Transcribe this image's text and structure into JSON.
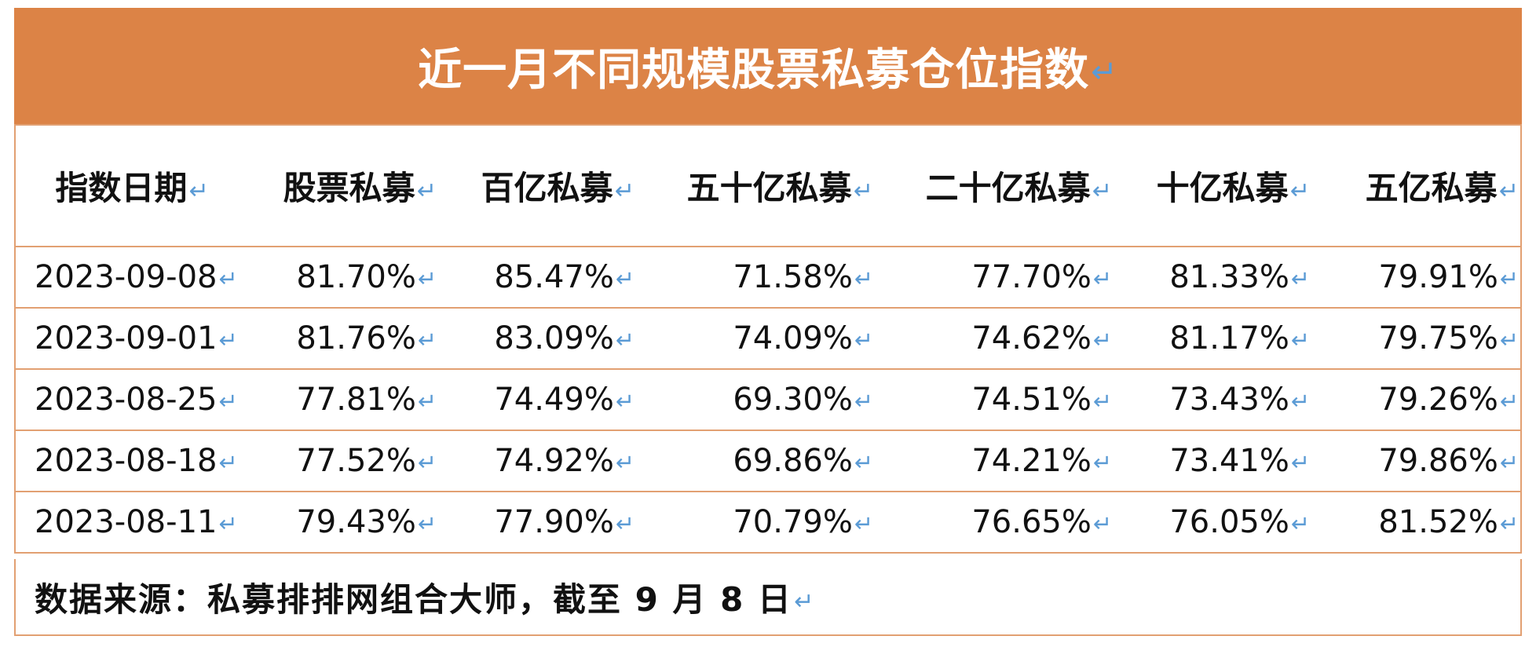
{
  "title": "近一月不同规模股票私募仓位指数",
  "paragraph_mark": "↵",
  "columns": [
    "指数日期",
    "股票私募",
    "百亿私募",
    "五十亿私募",
    "二十亿私募",
    "十亿私募",
    "五亿私募"
  ],
  "rows": [
    [
      "2023-09-08",
      "81.70%",
      "85.47%",
      "71.58%",
      "77.70%",
      "81.33%",
      "79.91%"
    ],
    [
      "2023-09-01",
      "81.76%",
      "83.09%",
      "74.09%",
      "74.62%",
      "81.17%",
      "79.75%"
    ],
    [
      "2023-08-25",
      "77.81%",
      "74.49%",
      "69.30%",
      "74.51%",
      "73.43%",
      "79.26%"
    ],
    [
      "2023-08-18",
      "77.52%",
      "74.92%",
      "69.86%",
      "74.21%",
      "73.41%",
      "79.86%"
    ],
    [
      "2023-08-11",
      "79.43%",
      "77.90%",
      "70.79%",
      "76.65%",
      "76.05%",
      "81.52%"
    ]
  ],
  "source_note": "数据来源：私募排排网组合大师，截至 9 月 8 日",
  "colors": {
    "title_bg": "#DC8346",
    "border": "#E2A072",
    "para_mark": "#5b9bd5"
  }
}
